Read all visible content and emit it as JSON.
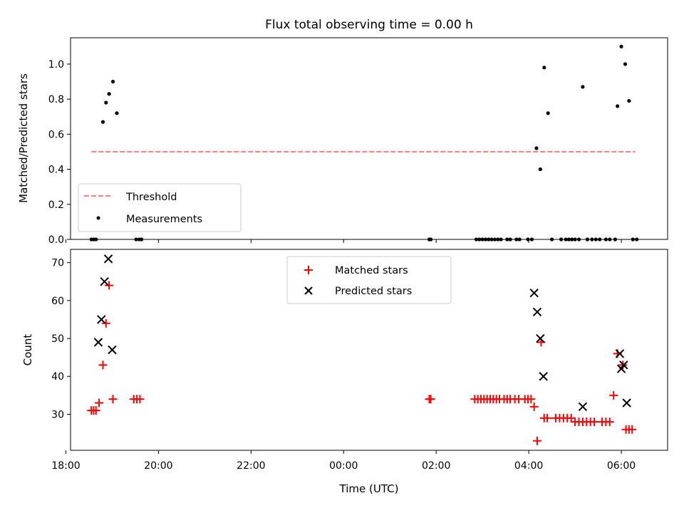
{
  "chart_data": [
    {
      "type": "scatter",
      "title": "Flux total observing time = 0.00 h",
      "xlabel": "",
      "ylabel": "Matched/Predicted stars",
      "xlim": [
        18.1,
        7.0
      ],
      "ylim": [
        0.0,
        1.15
      ],
      "x_axis": "shared",
      "yticks": [
        0.0,
        0.2,
        0.4,
        0.6,
        0.8,
        1.0
      ],
      "ytick_labels": [
        "0.0",
        "0.2",
        "0.4",
        "0.6",
        "0.8",
        "1.0"
      ],
      "legend": {
        "placement": "lower-left",
        "entries": [
          "Threshold",
          "Measurements"
        ]
      },
      "threshold": {
        "name": "Threshold",
        "y": 0.5,
        "x_start": "18:33",
        "x_end": "06:18",
        "color": "#ff7f7f",
        "style": "dashed"
      },
      "series": [
        {
          "name": "Measurements",
          "marker": "dot",
          "color": "#000000",
          "points": [
            [
              "18:33",
              0.0
            ],
            [
              "18:36",
              0.0
            ],
            [
              "18:39",
              0.0
            ],
            [
              "18:48",
              0.67
            ],
            [
              "18:52",
              0.78
            ],
            [
              "18:56",
              0.83
            ],
            [
              "19:01",
              0.9
            ],
            [
              "19:06",
              0.72
            ],
            [
              "19:31",
              0.0
            ],
            [
              "19:35",
              0.0
            ],
            [
              "19:38",
              0.0
            ],
            [
              "01:51",
              0.0
            ],
            [
              "01:53",
              0.0
            ],
            [
              "02:52",
              0.0
            ],
            [
              "02:56",
              0.0
            ],
            [
              "03:00",
              0.0
            ],
            [
              "03:04",
              0.0
            ],
            [
              "03:08",
              0.0
            ],
            [
              "03:12",
              0.0
            ],
            [
              "03:16",
              0.0
            ],
            [
              "03:20",
              0.0
            ],
            [
              "03:24",
              0.0
            ],
            [
              "03:32",
              0.0
            ],
            [
              "03:36",
              0.0
            ],
            [
              "03:44",
              0.0
            ],
            [
              "03:48",
              0.0
            ],
            [
              "03:59",
              0.0
            ],
            [
              "04:04",
              0.0
            ],
            [
              "04:10",
              0.52
            ],
            [
              "04:15",
              0.4
            ],
            [
              "04:20",
              0.98
            ],
            [
              "04:25",
              0.72
            ],
            [
              "04:30",
              0.0
            ],
            [
              "04:42",
              0.0
            ],
            [
              "04:48",
              0.0
            ],
            [
              "04:52",
              0.0
            ],
            [
              "04:56",
              0.0
            ],
            [
              "05:00",
              0.0
            ],
            [
              "05:05",
              0.0
            ],
            [
              "05:10",
              0.87
            ],
            [
              "05:16",
              0.0
            ],
            [
              "05:22",
              0.0
            ],
            [
              "05:27",
              0.0
            ],
            [
              "05:32",
              0.0
            ],
            [
              "05:40",
              0.0
            ],
            [
              "05:45",
              0.0
            ],
            [
              "05:52",
              0.0
            ],
            [
              "05:55",
              0.76
            ],
            [
              "06:00",
              1.1
            ],
            [
              "06:05",
              1.0
            ],
            [
              "06:10",
              0.79
            ],
            [
              "06:15",
              0.0
            ],
            [
              "06:20",
              0.0
            ]
          ]
        }
      ]
    },
    {
      "type": "scatter",
      "title": "",
      "xlabel": "Time (UTC)",
      "ylabel": "Count",
      "xlim": [
        18.1,
        7.0
      ],
      "ylim": [
        20.5,
        73.5
      ],
      "yticks": [
        30,
        40,
        50,
        60,
        70
      ],
      "ytick_labels": [
        "30",
        "40",
        "50",
        "60",
        "70"
      ],
      "xticks": [
        18,
        20,
        22,
        24,
        26,
        28,
        30
      ],
      "xtick_labels": [
        "18:00",
        "20:00",
        "22:00",
        "00:00",
        "02:00",
        "04:00",
        "06:00"
      ],
      "legend": {
        "placement": "top-center",
        "entries": [
          "Matched stars",
          "Predicted stars"
        ]
      },
      "series": [
        {
          "name": "Matched stars",
          "marker": "plus",
          "color": "#ff0000",
          "points": [
            [
              "18:33",
              31
            ],
            [
              "18:36",
              31
            ],
            [
              "18:39",
              31
            ],
            [
              "18:43",
              33
            ],
            [
              "18:48",
              43
            ],
            [
              "18:52",
              54
            ],
            [
              "18:56",
              64
            ],
            [
              "19:01",
              34
            ],
            [
              "19:28",
              34
            ],
            [
              "19:32",
              34
            ],
            [
              "19:36",
              34
            ],
            [
              "01:51",
              34
            ],
            [
              "01:53",
              34
            ],
            [
              "02:50",
              34
            ],
            [
              "02:54",
              34
            ],
            [
              "02:58",
              34
            ],
            [
              "03:02",
              34
            ],
            [
              "03:06",
              34
            ],
            [
              "03:10",
              34
            ],
            [
              "03:14",
              34
            ],
            [
              "03:18",
              34
            ],
            [
              "03:22",
              34
            ],
            [
              "03:28",
              34
            ],
            [
              "03:32",
              34
            ],
            [
              "03:36",
              34
            ],
            [
              "03:42",
              34
            ],
            [
              "03:47",
              34
            ],
            [
              "03:55",
              34
            ],
            [
              "03:59",
              34
            ],
            [
              "04:03",
              34
            ],
            [
              "04:07",
              32
            ],
            [
              "04:11",
              23
            ],
            [
              "04:16",
              49
            ],
            [
              "04:20",
              29
            ],
            [
              "04:24",
              29
            ],
            [
              "04:35",
              29
            ],
            [
              "04:40",
              29
            ],
            [
              "04:45",
              29
            ],
            [
              "04:50",
              29
            ],
            [
              "04:55",
              29
            ],
            [
              "05:00",
              28
            ],
            [
              "05:05",
              28
            ],
            [
              "05:10",
              28
            ],
            [
              "05:15",
              28
            ],
            [
              "05:20",
              28
            ],
            [
              "05:25",
              28
            ],
            [
              "05:35",
              28
            ],
            [
              "05:40",
              28
            ],
            [
              "05:45",
              28
            ],
            [
              "05:50",
              35
            ],
            [
              "05:55",
              46
            ],
            [
              "06:02",
              43
            ],
            [
              "06:06",
              26
            ],
            [
              "06:10",
              26
            ],
            [
              "06:14",
              26
            ]
          ]
        },
        {
          "name": "Predicted stars",
          "marker": "x",
          "color": "#000000",
          "points": [
            [
              "18:42",
              49
            ],
            [
              "18:46",
              55
            ],
            [
              "18:50",
              65
            ],
            [
              "18:55",
              71
            ],
            [
              "19:00",
              47
            ],
            [
              "04:07",
              62
            ],
            [
              "04:11",
              57
            ],
            [
              "04:15",
              50
            ],
            [
              "04:19",
              40
            ],
            [
              "05:10",
              32
            ],
            [
              "05:58",
              46
            ],
            [
              "06:00",
              42
            ],
            [
              "06:03",
              43
            ],
            [
              "06:07",
              33
            ]
          ]
        }
      ]
    }
  ]
}
